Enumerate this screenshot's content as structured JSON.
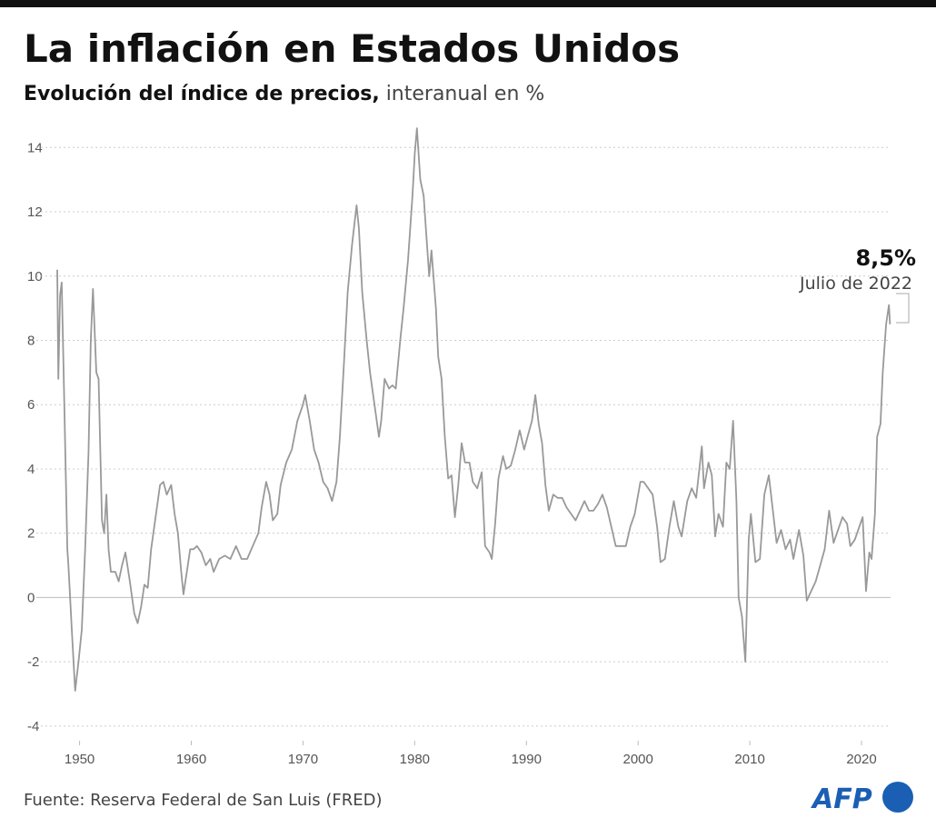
{
  "chart_data": {
    "type": "line",
    "title": "La inflación en Estados Unidos",
    "subtitle_bold": "Evolución del índice de precios,",
    "subtitle": "interanual en %",
    "source": "Fuente: Reserva Federal de San Luis (FRED)",
    "logo": "AFP",
    "annotation_value": "8,5%",
    "annotation_date": "Julio de  2022",
    "color": "#999999",
    "grid": true,
    "xlim": [
      1948,
      2022.6
    ],
    "xticks": [
      1950,
      1960,
      1970,
      1980,
      1990,
      2000,
      2010,
      2020
    ],
    "ylim": [
      -4.4,
      14.8
    ],
    "yticks": [
      -4,
      -2,
      0,
      2,
      4,
      6,
      8,
      10,
      12,
      14
    ],
    "x": [
      1948.0,
      1948.1,
      1948.25,
      1948.4,
      1948.6,
      1948.9,
      1949.0,
      1949.3,
      1949.6,
      1949.9,
      1950.2,
      1950.5,
      1950.8,
      1951.0,
      1951.2,
      1951.5,
      1951.7,
      1952.0,
      1952.2,
      1952.4,
      1952.6,
      1952.8,
      1953.2,
      1953.5,
      1953.8,
      1954.1,
      1954.5,
      1954.9,
      1955.2,
      1955.5,
      1955.8,
      1956.1,
      1956.4,
      1956.8,
      1957.2,
      1957.5,
      1957.8,
      1958.2,
      1958.5,
      1958.8,
      1959.1,
      1959.3,
      1959.6,
      1959.9,
      1960.2,
      1960.5,
      1960.9,
      1961.3,
      1961.7,
      1962.0,
      1962.5,
      1963.0,
      1963.5,
      1964.0,
      1964.5,
      1965.0,
      1965.5,
      1966.0,
      1966.3,
      1966.7,
      1967.0,
      1967.3,
      1967.7,
      1968.0,
      1968.5,
      1969.0,
      1969.5,
      1970.0,
      1970.2,
      1970.6,
      1971.0,
      1971.4,
      1971.8,
      1972.2,
      1972.6,
      1973.0,
      1973.3,
      1973.7,
      1974.0,
      1974.4,
      1974.8,
      1975.0,
      1975.3,
      1975.7,
      1976.0,
      1976.4,
      1976.8,
      1977.0,
      1977.3,
      1977.7,
      1978.0,
      1978.3,
      1978.7,
      1979.0,
      1979.4,
      1979.8,
      1980.0,
      1980.2,
      1980.5,
      1980.8,
      1981.0,
      1981.3,
      1981.5,
      1981.9,
      1982.1,
      1982.4,
      1982.7,
      1983.0,
      1983.3,
      1983.6,
      1983.9,
      1984.2,
      1984.5,
      1984.9,
      1985.2,
      1985.6,
      1986.0,
      1986.3,
      1986.7,
      1986.9,
      1987.2,
      1987.5,
      1987.9,
      1988.2,
      1988.6,
      1989.0,
      1989.4,
      1989.8,
      1990.1,
      1990.5,
      1990.8,
      1991.1,
      1991.4,
      1991.7,
      1992.0,
      1992.4,
      1992.8,
      1993.2,
      1993.6,
      1994.0,
      1994.4,
      1994.8,
      1995.2,
      1995.6,
      1996.0,
      1996.4,
      1996.8,
      1997.2,
      1997.6,
      1998.0,
      1998.5,
      1998.9,
      1999.3,
      1999.7,
      2000.2,
      2000.5,
      2000.9,
      2001.3,
      2001.7,
      2002.0,
      2002.4,
      2002.8,
      2003.2,
      2003.6,
      2003.9,
      2004.4,
      2004.8,
      2005.2,
      2005.7,
      2005.9,
      2006.3,
      2006.6,
      2006.9,
      2007.2,
      2007.6,
      2007.9,
      2008.2,
      2008.5,
      2008.8,
      2009.0,
      2009.3,
      2009.6,
      2009.9,
      2010.1,
      2010.5,
      2010.9,
      2011.3,
      2011.7,
      2012.0,
      2012.4,
      2012.8,
      2013.2,
      2013.6,
      2013.9,
      2014.4,
      2014.8,
      2015.1,
      2015.5,
      2015.9,
      2016.3,
      2016.7,
      2017.1,
      2017.5,
      2017.9,
      2018.3,
      2018.7,
      2019.0,
      2019.4,
      2019.9,
      2020.1,
      2020.4,
      2020.7,
      2020.9,
      2021.2,
      2021.4,
      2021.7,
      2021.9,
      2022.2,
      2022.45,
      2022.55
    ],
    "values": [
      10.2,
      6.8,
      9.4,
      9.8,
      6.5,
      1.5,
      1.0,
      -1.0,
      -2.9,
      -2.0,
      -1.0,
      1.5,
      4.5,
      8.0,
      9.6,
      7.0,
      6.8,
      2.4,
      2.0,
      3.2,
      1.5,
      0.8,
      0.8,
      0.5,
      1.0,
      1.4,
      0.5,
      -0.5,
      -0.8,
      -0.3,
      0.4,
      0.3,
      1.5,
      2.5,
      3.5,
      3.6,
      3.2,
      3.5,
      2.6,
      2.0,
      0.8,
      0.1,
      0.8,
      1.5,
      1.5,
      1.6,
      1.4,
      1.0,
      1.2,
      0.8,
      1.2,
      1.3,
      1.2,
      1.6,
      1.2,
      1.2,
      1.6,
      2.0,
      2.8,
      3.6,
      3.2,
      2.4,
      2.6,
      3.5,
      4.2,
      4.6,
      5.5,
      6.0,
      6.3,
      5.5,
      4.6,
      4.2,
      3.6,
      3.4,
      3.0,
      3.6,
      5.0,
      7.5,
      9.5,
      11.0,
      12.2,
      11.5,
      9.5,
      8.0,
      7.0,
      6.0,
      5.0,
      5.5,
      6.8,
      6.5,
      6.6,
      6.5,
      8.0,
      9.0,
      10.5,
      12.5,
      13.8,
      14.6,
      13.0,
      12.5,
      11.5,
      10.0,
      10.8,
      9.0,
      7.5,
      6.8,
      5.0,
      3.7,
      3.8,
      2.5,
      3.5,
      4.8,
      4.2,
      4.2,
      3.6,
      3.4,
      3.9,
      1.6,
      1.4,
      1.2,
      2.3,
      3.7,
      4.4,
      4.0,
      4.1,
      4.6,
      5.2,
      4.6,
      5.0,
      5.5,
      6.3,
      5.4,
      4.8,
      3.5,
      2.7,
      3.2,
      3.1,
      3.1,
      2.8,
      2.6,
      2.4,
      2.7,
      3.0,
      2.7,
      2.7,
      2.9,
      3.2,
      2.8,
      2.2,
      1.6,
      1.6,
      1.6,
      2.2,
      2.6,
      3.6,
      3.6,
      3.4,
      3.2,
      2.2,
      1.1,
      1.2,
      2.2,
      3.0,
      2.2,
      1.9,
      3.0,
      3.4,
      3.1,
      4.7,
      3.4,
      4.2,
      3.8,
      1.9,
      2.6,
      2.2,
      4.2,
      4.0,
      5.5,
      3.0,
      0.0,
      -0.6,
      -2.0,
      1.8,
      2.6,
      1.1,
      1.2,
      3.2,
      3.8,
      2.9,
      1.7,
      2.1,
      1.5,
      1.8,
      1.2,
      2.1,
      1.3,
      -0.1,
      0.2,
      0.5,
      1.0,
      1.5,
      2.7,
      1.7,
      2.1,
      2.5,
      2.3,
      1.6,
      1.8,
      2.3,
      2.5,
      0.2,
      1.4,
      1.2,
      2.6,
      5.0,
      5.4,
      7.0,
      8.5,
      9.1,
      8.5
    ]
  }
}
